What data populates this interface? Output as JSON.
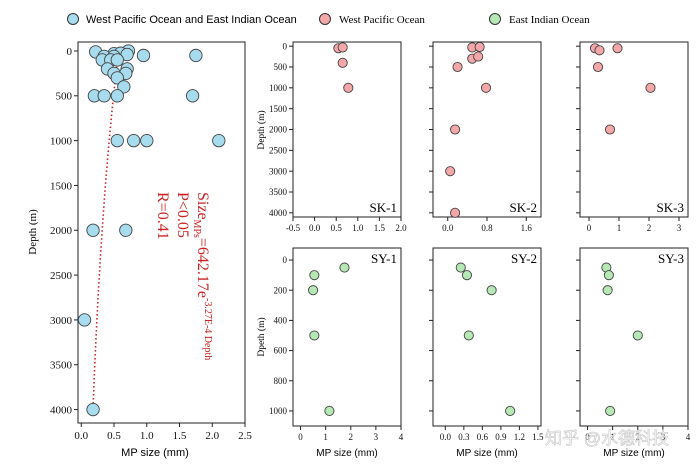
{
  "legend": [
    {
      "label": "West Pacific Ocean and East Indian Ocean",
      "color": "#a6dcee"
    },
    {
      "label": "West Pacific Ocean",
      "color": "#f4a7a9"
    },
    {
      "label": "East Indian Ocean",
      "color": "#b5e8b5"
    }
  ],
  "watermark": "知乎 @水德科技",
  "chart_data": [
    {
      "id": "combined",
      "type": "scatter",
      "color": "#a6dcee",
      "xlabel": "MP size (mm)",
      "ylabel": "Depth (m)",
      "xlim": [
        -0.05,
        2.5
      ],
      "ylim": [
        4150,
        -100
      ],
      "y_inverted": true,
      "xticks": [
        0.0,
        0.5,
        1.0,
        1.5,
        2.0,
        2.5
      ],
      "xtick_labels": [
        "0.0",
        "0.5",
        "1.0",
        "1.5",
        "2.0",
        "2.5"
      ],
      "yticks": [
        0,
        500,
        1000,
        1500,
        2000,
        2500,
        3000,
        3500,
        4000
      ],
      "ytick_labels": [
        "0",
        "500",
        "1000",
        "1500",
        "2000",
        "2500",
        "3000",
        "3500",
        "4000"
      ],
      "points": [
        [
          0.22,
          10
        ],
        [
          0.72,
          0
        ],
        [
          0.5,
          30
        ],
        [
          0.6,
          25
        ],
        [
          0.35,
          60
        ],
        [
          0.5,
          60
        ],
        [
          0.7,
          40
        ],
        [
          0.95,
          50
        ],
        [
          1.75,
          50
        ],
        [
          0.32,
          100
        ],
        [
          0.45,
          100
        ],
        [
          0.55,
          100
        ],
        [
          0.4,
          200
        ],
        [
          0.7,
          200
        ],
        [
          0.5,
          250
        ],
        [
          0.68,
          250
        ],
        [
          0.55,
          300
        ],
        [
          0.65,
          400
        ],
        [
          0.2,
          500
        ],
        [
          0.35,
          500
        ],
        [
          0.55,
          500
        ],
        [
          1.7,
          500
        ],
        [
          0.55,
          1000
        ],
        [
          0.8,
          1000
        ],
        [
          1.0,
          1000
        ],
        [
          2.1,
          1000
        ],
        [
          0.18,
          2000
        ],
        [
          0.68,
          2000
        ],
        [
          0.05,
          3000
        ],
        [
          0.18,
          4000
        ]
      ],
      "fit_curve": {
        "equation_prefix": "Size",
        "subscript": "MPs",
        "equation_main": "=642.17e",
        "exponent": "-3.27E-4 Depth",
        "p": "P<0.05",
        "r": "R=0.41",
        "a": 642.17,
        "b": -0.000327
      }
    },
    {
      "id": "SK-1",
      "type": "scatter",
      "label": "SK-1",
      "color": "#f4a7a9",
      "xlim": [
        -0.5,
        2.0
      ],
      "ylim": [
        4100,
        -100
      ],
      "xticks": [
        -0.5,
        0.0,
        0.5,
        1.0,
        1.5,
        2.0
      ],
      "xtick_labels": [
        "-0.5",
        "0.0",
        "0.5",
        "1.0",
        "1.5",
        "2.0"
      ],
      "yticks": [
        0,
        500,
        1000,
        1500,
        2000,
        2500,
        3000,
        3500,
        4000
      ],
      "ytick_labels": [
        "0",
        "500",
        "1000",
        "1500",
        "2000",
        "2500",
        "3000",
        "3500",
        "4000"
      ],
      "ylabel": "Depth (m)",
      "points": [
        [
          0.55,
          50
        ],
        [
          0.65,
          30
        ],
        [
          0.65,
          400
        ],
        [
          0.78,
          1000
        ]
      ]
    },
    {
      "id": "SK-2",
      "type": "scatter",
      "label": "SK-2",
      "color": "#f4a7a9",
      "xlim": [
        -0.3,
        1.9
      ],
      "ylim": [
        4100,
        -100
      ],
      "xticks": [
        0.0,
        0.8,
        1.6
      ],
      "xtick_labels": [
        "0.0",
        "0.8",
        "1.6"
      ],
      "yticks": [
        0,
        500,
        1000,
        1500,
        2000,
        2500,
        3000,
        3500,
        4000
      ],
      "points": [
        [
          0.5,
          30
        ],
        [
          0.65,
          20
        ],
        [
          0.5,
          300
        ],
        [
          0.62,
          250
        ],
        [
          0.2,
          500
        ],
        [
          0.78,
          1000
        ],
        [
          0.15,
          2000
        ],
        [
          0.05,
          3000
        ],
        [
          0.15,
          4000
        ]
      ]
    },
    {
      "id": "SK-3",
      "type": "scatter",
      "label": "SK-3",
      "color": "#f4a7a9",
      "xlim": [
        -0.3,
        3.3
      ],
      "ylim": [
        4100,
        -100
      ],
      "xticks": [
        0,
        1,
        2,
        3
      ],
      "xtick_labels": [
        "0",
        "1",
        "2",
        "3"
      ],
      "yticks": [
        0,
        500,
        1000,
        1500,
        2000,
        2500,
        3000,
        3500,
        4000
      ],
      "points": [
        [
          0.2,
          50
        ],
        [
          0.35,
          100
        ],
        [
          0.95,
          50
        ],
        [
          0.3,
          500
        ],
        [
          2.05,
          1000
        ],
        [
          0.7,
          2000
        ]
      ]
    },
    {
      "id": "SY-1",
      "type": "scatter",
      "label": "SY-1",
      "color": "#b5e8b5",
      "xlim": [
        -0.3,
        4.0
      ],
      "ylim": [
        1100,
        -80
      ],
      "xticks": [
        0,
        1,
        2,
        3,
        4
      ],
      "xtick_labels": [
        "0",
        "1",
        "2",
        "3",
        "4"
      ],
      "yticks": [
        0,
        200,
        400,
        600,
        800,
        1000
      ],
      "ytick_labels": [
        "0",
        "200",
        "400",
        "600",
        "800",
        "1000"
      ],
      "ylabel": "Dpeth (m)",
      "xlabel": "MP size (mm)",
      "points": [
        [
          0.55,
          100
        ],
        [
          1.75,
          50
        ],
        [
          0.5,
          200
        ],
        [
          0.55,
          500
        ],
        [
          1.15,
          1000
        ]
      ]
    },
    {
      "id": "SY-2",
      "type": "scatter",
      "label": "SY-2",
      "color": "#b5e8b5",
      "xlim": [
        -0.2,
        1.55
      ],
      "ylim": [
        1100,
        -80
      ],
      "xticks": [
        0.0,
        0.3,
        0.6,
        0.9,
        1.2,
        1.5
      ],
      "xtick_labels": [
        "0.0",
        "0.3",
        "0.6",
        "0.9",
        "1.2",
        "1.5"
      ],
      "yticks": [
        0,
        200,
        400,
        600,
        800,
        1000
      ],
      "xlabel": "MP size (mm)",
      "points": [
        [
          0.25,
          50
        ],
        [
          0.35,
          100
        ],
        [
          0.75,
          200
        ],
        [
          0.38,
          500
        ],
        [
          1.05,
          1000
        ]
      ]
    },
    {
      "id": "SY-3",
      "type": "scatter",
      "label": "SY-3",
      "color": "#b5e8b5",
      "xlim": [
        -0.3,
        4.0
      ],
      "ylim": [
        1100,
        -80
      ],
      "xticks": [
        0,
        1,
        2,
        3,
        4
      ],
      "xtick_labels": [
        "0",
        "1",
        "2",
        "3",
        "4"
      ],
      "yticks": [
        0,
        200,
        400,
        600,
        800,
        1000
      ],
      "xlabel": "MP size (mm)",
      "points": [
        [
          0.75,
          50
        ],
        [
          0.85,
          100
        ],
        [
          0.8,
          200
        ],
        [
          2.0,
          500
        ],
        [
          0.9,
          1000
        ]
      ]
    }
  ]
}
